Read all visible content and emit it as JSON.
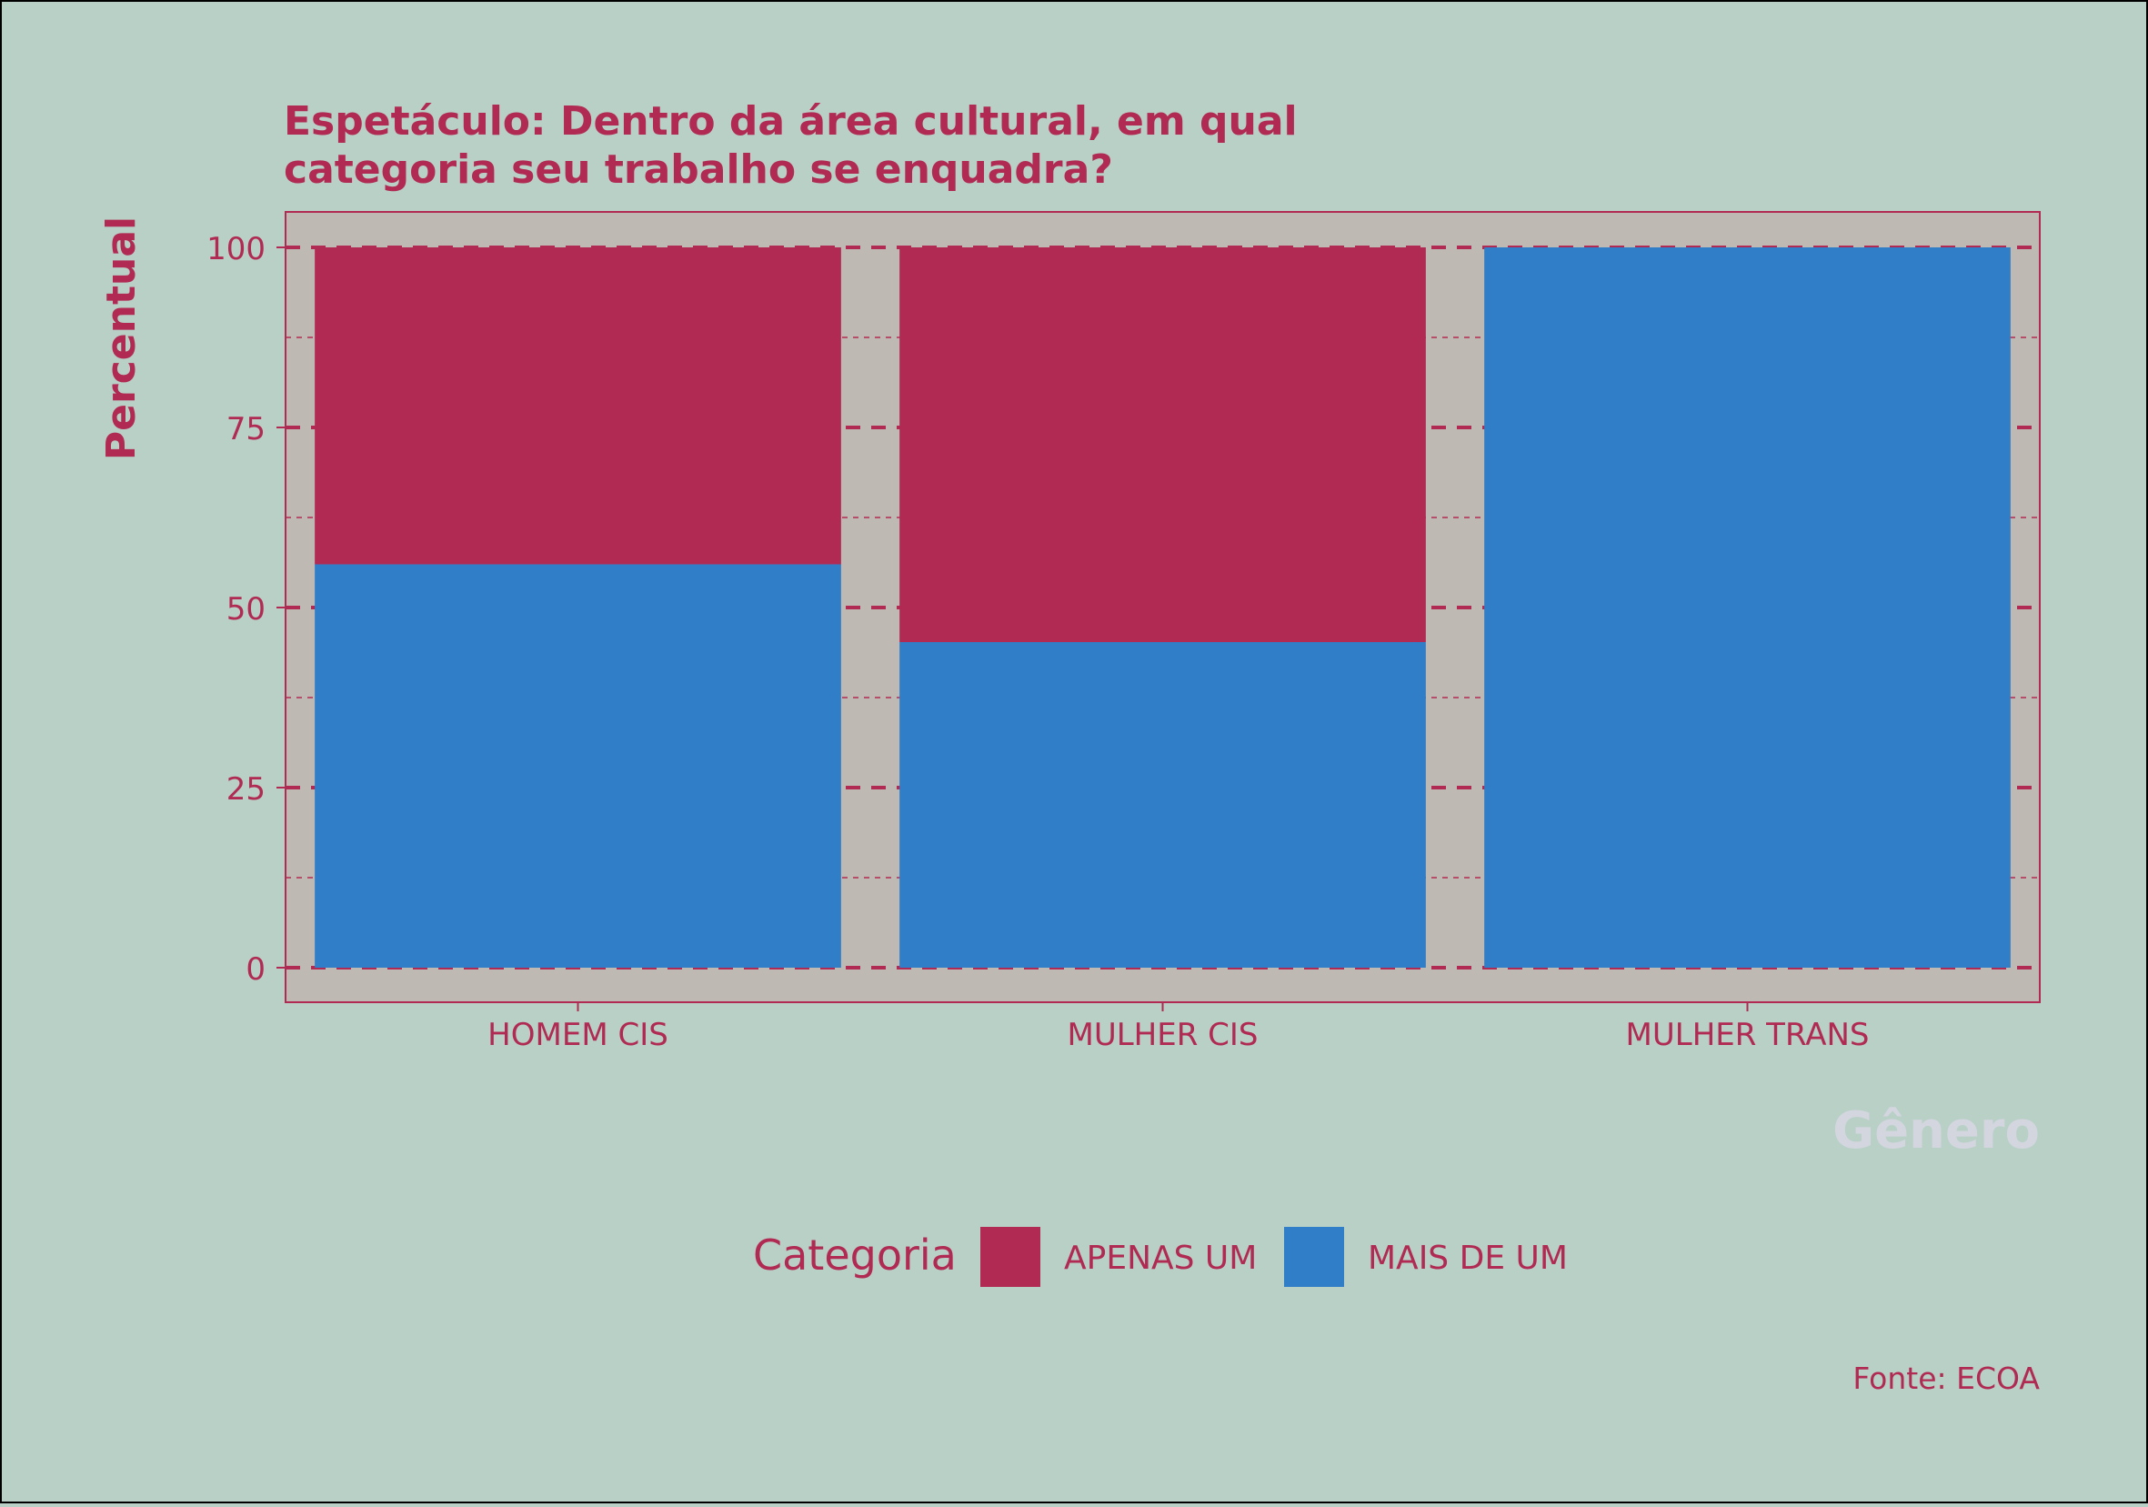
{
  "chart_data": {
    "type": "bar",
    "stacked": true,
    "title_lines": [
      "Espetáculo: Dentro da área cultural, em qual",
      "categoria seu trabalho se enquadra?"
    ],
    "xlabel": "Gênero",
    "ylabel": "Percentual",
    "categories": [
      "HOMEM CIS",
      "MULHER CIS",
      "MULHER TRANS"
    ],
    "series": [
      {
        "name": "MAIS DE UM",
        "values": [
          56,
          45.2,
          100
        ],
        "color": "#317ec8"
      },
      {
        "name": "APENAS UM",
        "values": [
          44,
          54.8,
          0
        ],
        "color": "#b02a53"
      }
    ],
    "legend_title": "Categoria",
    "legend_order": [
      "APENAS UM",
      "MAIS DE UM"
    ],
    "legend_position": "bottom",
    "ylim": [
      0,
      100
    ],
    "yticks": [
      0,
      25,
      50,
      75,
      100
    ],
    "grid": true,
    "caption": "Fonte: ECOA",
    "colors": {
      "background": "#b8d0c6",
      "panel": "#bebab3",
      "accent": "#b02a53",
      "xlabel": "#d4d6df"
    }
  }
}
